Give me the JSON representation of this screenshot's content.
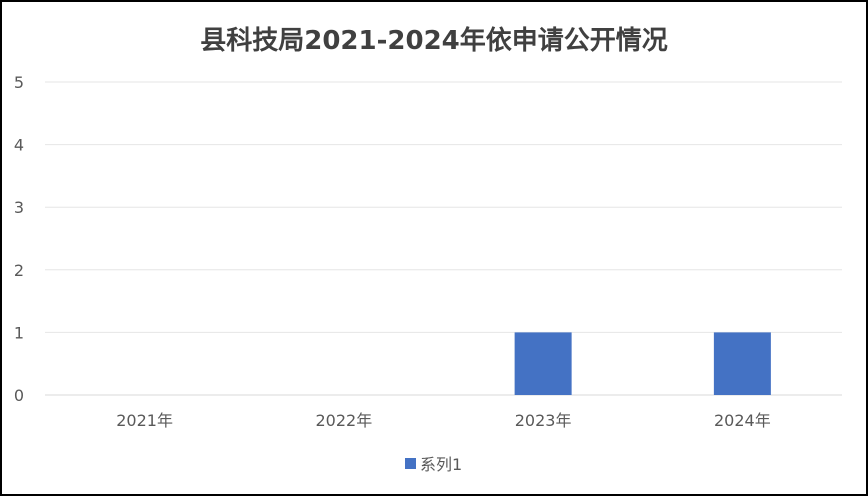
{
  "chart_data": {
    "type": "bar",
    "title": "县科技局2021-2024年依申请公开情况",
    "categories": [
      "2021年",
      "2022年",
      "2023年",
      "2024年"
    ],
    "series": [
      {
        "name": "系列1",
        "values": [
          0,
          0,
          1,
          1
        ],
        "color": "#4472C4"
      }
    ],
    "ylim": [
      0,
      5
    ],
    "yticks": [
      0,
      1,
      2,
      3,
      4,
      5
    ],
    "grid": true,
    "legend": "bottom"
  }
}
